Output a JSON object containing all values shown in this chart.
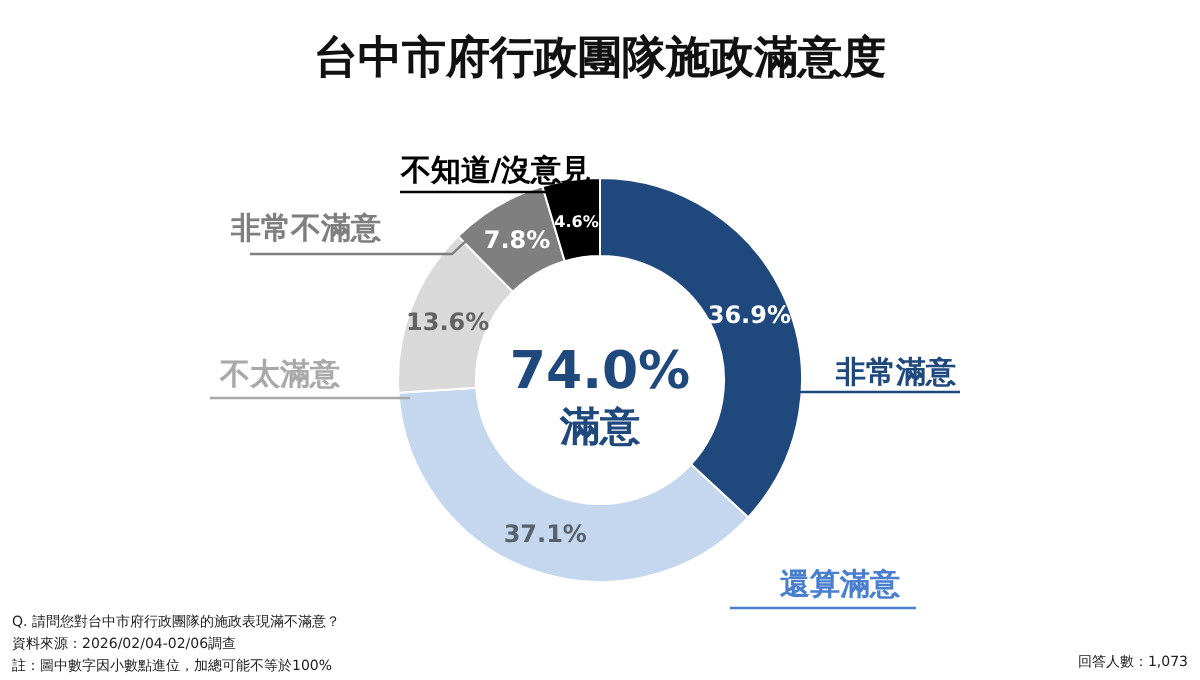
{
  "chart_data": {
    "type": "donut",
    "title": "台中市府行政團隊施政滿意度",
    "categories": [
      "非常滿意",
      "還算滿意",
      "不太滿意",
      "非常不滿意",
      "不知道/沒意見"
    ],
    "values": [
      36.9,
      37.1,
      13.6,
      7.8,
      4.6
    ],
    "colors": [
      "#1f497d",
      "#c5d7ef",
      "#d9d9d9",
      "#7f7f7f",
      "#000000"
    ],
    "value_labels": [
      "36.9%",
      "37.1%",
      "13.6%",
      "7.8%",
      "4.6%"
    ],
    "annotations": [
      "74.0%",
      "滿意",
      "Q. 請問您對台中市府行政團隊的施政表現滿不滿意？",
      "資料來源：2026/02/04-02/06調查",
      "註：圖中數字因小數點進位，加總可能不等於100%",
      "回答人數：1,073"
    ]
  }
}
